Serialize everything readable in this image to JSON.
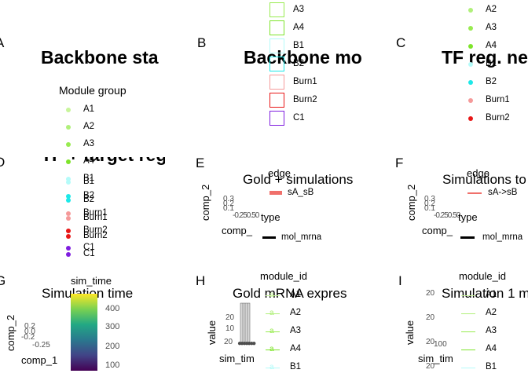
{
  "colors": {
    "A1": "#c8f59b",
    "A2": "#b0f07a",
    "A3": "#98eb50",
    "A4": "#7ee42b",
    "B1": "#b4fbf9",
    "B2": "#1de8e8",
    "Burn1": "#f59a9a",
    "Burn2": "#e81717",
    "C1": "#7f1ddf"
  },
  "panels": {
    "A": {
      "tag": "A",
      "title": "Backbone sta",
      "legend_title": "Module group",
      "legend_items": [
        "A1",
        "A2",
        "A3",
        "A4",
        "B1",
        "B2",
        "Burn1",
        "Burn2",
        "C1"
      ]
    },
    "B": {
      "tag": "B",
      "title": "Backbone mo",
      "legend_items": [
        "A3",
        "A4",
        "B1",
        "B2",
        "Burn1",
        "Burn2",
        "C1"
      ]
    },
    "C": {
      "tag": "C",
      "title": "TF reg. ne",
      "legend_items": [
        "A2",
        "A3",
        "A4",
        "B1",
        "B2",
        "Burn1",
        "Burn2"
      ]
    },
    "D": {
      "tag": "D",
      "title": "TF + target reg",
      "legend_items": [
        "B1",
        "B2",
        "Burn1",
        "Burn2",
        "C1"
      ]
    },
    "E": {
      "tag": "E",
      "title": "Gold + simulations",
      "legend_title_1": "edge",
      "edge_label": "sA_sB",
      "legend_title_2": "type",
      "type_label": "mol_mrna",
      "xlabel": "comp_",
      "ylabel": "comp_2",
      "yticks": [
        "0.3",
        "0.2",
        "0.1"
      ],
      "xticks": "-0.250.50"
    },
    "F": {
      "tag": "F",
      "title": "Simulations to",
      "legend_title_1": "edge",
      "edge_label": "sA->sB",
      "legend_title_2": "type",
      "type_label": "mol_mrna",
      "xlabel": "comp_",
      "ylabel": "comp_2",
      "yticks": [
        "0.3",
        "0.2",
        "0.1"
      ],
      "xticks": "-0.250.50"
    },
    "G": {
      "tag": "G",
      "title": "Simulation time",
      "legend_title": "sim_time",
      "xlabel": "comp_1",
      "ylabel": "comp_2",
      "yticks": [
        "0.2",
        "0.0",
        "-0.2"
      ],
      "xticks": "-0.25",
      "colorbar_ticks": [
        "400",
        "300",
        "200",
        "100"
      ]
    },
    "H": {
      "tag": "H",
      "title": "Gold mRNA expres",
      "legend_title": "module_id",
      "legend_items": [
        "A1",
        "A2",
        "A3",
        "A4",
        "B1"
      ],
      "xlabel": "sim_tim",
      "ylabel": "value",
      "yticks": [
        "20",
        "10",
        "20"
      ]
    },
    "I": {
      "tag": "I",
      "title": "Simulation 1 m",
      "legend_title": "module_id",
      "legend_items": [
        "A1",
        "A2",
        "A3",
        "A4",
        "B1"
      ],
      "xlabel": "sim_tim",
      "ylabel": "value",
      "yticks": [
        "20",
        "20",
        "20",
        "20"
      ],
      "xtick": "100"
    }
  },
  "chart_data": [
    {
      "type": "other",
      "panel": "A",
      "title": "Backbone sta",
      "legend": [
        "A1",
        "A2",
        "A3",
        "A4",
        "B1",
        "B2",
        "Burn1",
        "Burn2",
        "C1"
      ]
    },
    {
      "type": "other",
      "panel": "B",
      "title": "Backbone mo",
      "legend": [
        "A3",
        "A4",
        "B1",
        "B2",
        "Burn1",
        "Burn2",
        "C1"
      ]
    },
    {
      "type": "other",
      "panel": "C",
      "title": "TF reg. ne",
      "legend": [
        "A2",
        "A3",
        "A4",
        "B1",
        "B2",
        "Burn1",
        "Burn2"
      ]
    },
    {
      "type": "other",
      "panel": "D",
      "title": "TF + target reg",
      "legend": [
        "B1",
        "B2",
        "Burn1",
        "Burn2",
        "C1"
      ]
    },
    {
      "type": "scatter",
      "panel": "E",
      "title": "Gold + simulations",
      "xlabel": "comp_",
      "ylabel": "comp_2",
      "legend": [
        "sA_sB",
        "mol_mrna"
      ]
    },
    {
      "type": "scatter",
      "panel": "F",
      "title": "Simulations to",
      "xlabel": "comp_",
      "ylabel": "comp_2",
      "legend": [
        "sA->sB",
        "mol_mrna"
      ]
    },
    {
      "type": "scatter",
      "panel": "G",
      "title": "Simulation time",
      "xlabel": "comp_1",
      "ylabel": "comp_2",
      "colorbar": [
        100,
        200,
        300,
        400
      ]
    },
    {
      "type": "line",
      "panel": "H",
      "title": "Gold mRNA expres",
      "xlabel": "sim_tim",
      "ylabel": "value",
      "legend": [
        "A1",
        "A2",
        "A3",
        "A4",
        "B1"
      ]
    },
    {
      "type": "line",
      "panel": "I",
      "title": "Simulation 1 m",
      "xlabel": "sim_tim",
      "ylabel": "value",
      "legend": [
        "A1",
        "A2",
        "A3",
        "A4",
        "B1"
      ]
    }
  ]
}
